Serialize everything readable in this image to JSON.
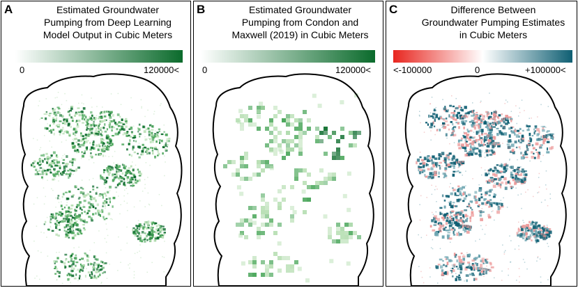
{
  "panels": [
    {
      "letter": "A",
      "title_lines": [
        "Estimated Groundwater",
        "Pumping from Deep Learning",
        "Model Output in Cubic Meters"
      ],
      "scale": {
        "min_label": "0",
        "max_label": "120000<",
        "colors": [
          "#ffffff",
          "#0b6b2c"
        ]
      }
    },
    {
      "letter": "B",
      "title_lines": [
        "Estimated Groundwater",
        "Pumping from Condon and",
        "Maxwell (2019) in Cubic Meters"
      ],
      "scale": {
        "min_label": "0",
        "max_label": "120000<",
        "colors": [
          "#ffffff",
          "#0b6b2c"
        ]
      }
    },
    {
      "letter": "C",
      "title_lines": [
        "Difference Between",
        "Groundwater Pumping Estimates",
        "in Cubic Meters"
      ],
      "scale": {
        "min_label": "<-100000",
        "mid_label": "0",
        "max_label": "+100000<",
        "colors": [
          "#e8261f",
          "#ffffff",
          "#0f5f73"
        ]
      }
    }
  ],
  "map_colors": {
    "outline": "#000000",
    "green_dark": "#0b6b2c",
    "green_mid": "#4aa65a",
    "green_light": "#b8dfb4",
    "teal": "#0f5f73",
    "teal_light": "#6fa6b2",
    "pink": "#ec9a9a"
  }
}
